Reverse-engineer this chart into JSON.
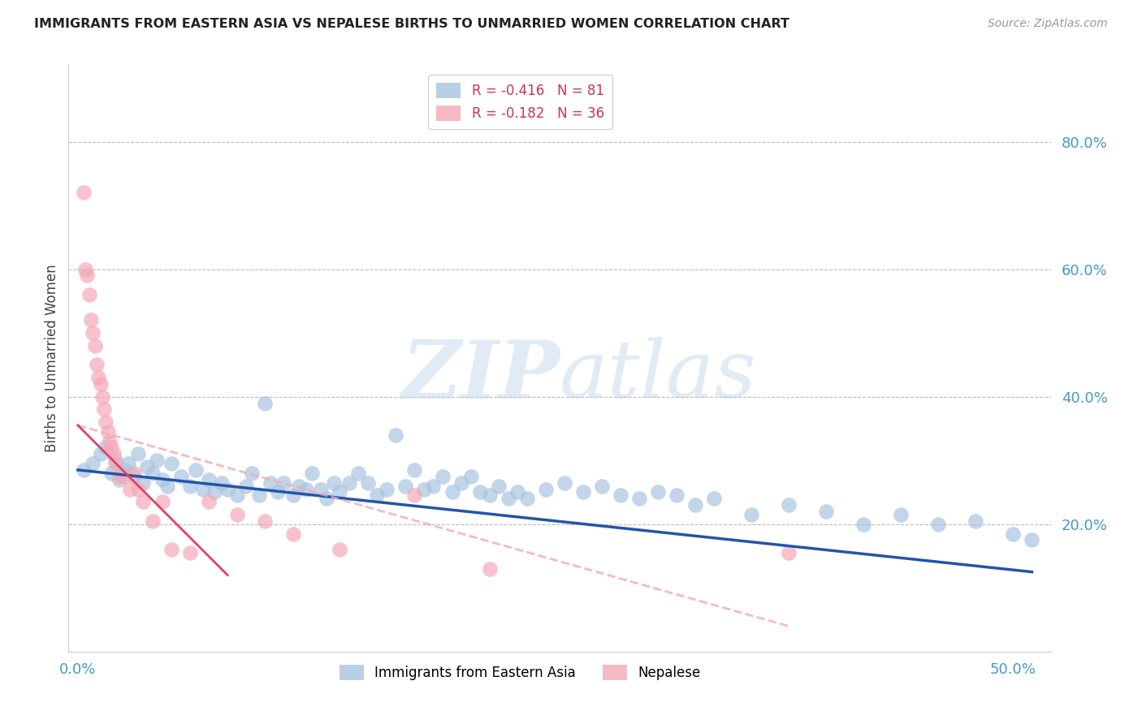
{
  "title": "IMMIGRANTS FROM EASTERN ASIA VS NEPALESE BIRTHS TO UNMARRIED WOMEN CORRELATION CHART",
  "source": "Source: ZipAtlas.com",
  "ylabel": "Births to Unmarried Women",
  "y_tick_vals_right": [
    0.2,
    0.4,
    0.6,
    0.8
  ],
  "xlim": [
    -0.005,
    0.52
  ],
  "ylim": [
    0.0,
    0.92
  ],
  "legend_label1": "Immigrants from Eastern Asia",
  "legend_label2": "Nepalese",
  "legend_r1": "R = -0.416",
  "legend_n1": "N = 81",
  "legend_r2": "R = -0.182",
  "legend_n2": "N = 36",
  "blue_color": "#A8C4E0",
  "pink_color": "#F4A8B8",
  "line_blue": "#2255AA",
  "line_pink": "#DD4466",
  "watermark_color": "#C5D8EE",
  "blue_points_x": [
    0.003,
    0.008,
    0.012,
    0.015,
    0.018,
    0.02,
    0.022,
    0.025,
    0.027,
    0.03,
    0.032,
    0.035,
    0.037,
    0.04,
    0.042,
    0.045,
    0.048,
    0.05,
    0.055,
    0.06,
    0.063,
    0.067,
    0.07,
    0.073,
    0.077,
    0.08,
    0.085,
    0.09,
    0.093,
    0.097,
    0.1,
    0.103,
    0.107,
    0.11,
    0.115,
    0.118,
    0.122,
    0.125,
    0.13,
    0.133,
    0.137,
    0.14,
    0.145,
    0.15,
    0.155,
    0.16,
    0.165,
    0.17,
    0.175,
    0.18,
    0.185,
    0.19,
    0.195,
    0.2,
    0.205,
    0.21,
    0.215,
    0.22,
    0.225,
    0.23,
    0.235,
    0.24,
    0.25,
    0.26,
    0.27,
    0.28,
    0.29,
    0.3,
    0.31,
    0.32,
    0.33,
    0.34,
    0.36,
    0.38,
    0.4,
    0.42,
    0.44,
    0.46,
    0.48,
    0.5,
    0.51
  ],
  "blue_points_y": [
    0.285,
    0.295,
    0.31,
    0.32,
    0.28,
    0.3,
    0.27,
    0.285,
    0.295,
    0.275,
    0.31,
    0.265,
    0.29,
    0.28,
    0.3,
    0.27,
    0.26,
    0.295,
    0.275,
    0.26,
    0.285,
    0.255,
    0.27,
    0.25,
    0.265,
    0.255,
    0.245,
    0.26,
    0.28,
    0.245,
    0.39,
    0.265,
    0.25,
    0.265,
    0.245,
    0.26,
    0.255,
    0.28,
    0.255,
    0.24,
    0.265,
    0.25,
    0.265,
    0.28,
    0.265,
    0.245,
    0.255,
    0.34,
    0.26,
    0.285,
    0.255,
    0.26,
    0.275,
    0.25,
    0.265,
    0.275,
    0.25,
    0.245,
    0.26,
    0.24,
    0.25,
    0.24,
    0.255,
    0.265,
    0.25,
    0.26,
    0.245,
    0.24,
    0.25,
    0.245,
    0.23,
    0.24,
    0.215,
    0.23,
    0.22,
    0.2,
    0.215,
    0.2,
    0.205,
    0.185,
    0.175
  ],
  "pink_points_x": [
    0.003,
    0.004,
    0.005,
    0.006,
    0.007,
    0.008,
    0.009,
    0.01,
    0.011,
    0.012,
    0.013,
    0.014,
    0.015,
    0.016,
    0.017,
    0.018,
    0.019,
    0.02,
    0.022,
    0.025,
    0.028,
    0.03,
    0.032,
    0.035,
    0.04,
    0.045,
    0.05,
    0.06,
    0.07,
    0.085,
    0.1,
    0.115,
    0.14,
    0.18,
    0.22,
    0.38
  ],
  "pink_points_y": [
    0.72,
    0.6,
    0.59,
    0.56,
    0.52,
    0.5,
    0.48,
    0.45,
    0.43,
    0.42,
    0.4,
    0.38,
    0.36,
    0.345,
    0.33,
    0.32,
    0.31,
    0.295,
    0.275,
    0.275,
    0.255,
    0.28,
    0.255,
    0.235,
    0.205,
    0.235,
    0.16,
    0.155,
    0.235,
    0.215,
    0.205,
    0.185,
    0.16,
    0.245,
    0.13,
    0.155
  ],
  "blue_line_x": [
    0.0,
    0.51
  ],
  "blue_line_y": [
    0.285,
    0.125
  ],
  "pink_line_x": [
    0.0,
    0.38
  ],
  "pink_line_y": [
    0.355,
    0.04
  ]
}
